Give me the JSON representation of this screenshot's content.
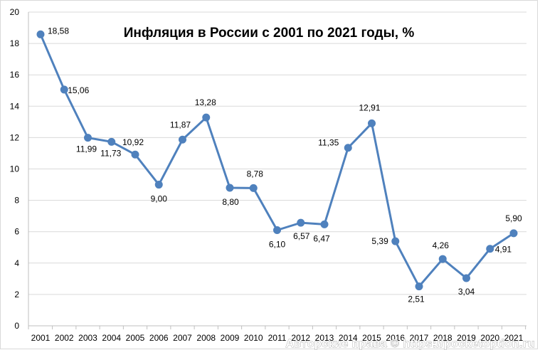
{
  "chart_data": {
    "type": "line",
    "title": "Инфляция в России с 2001 по 2021 годы, %",
    "categories": [
      "2001",
      "2002",
      "2003",
      "2004",
      "2005",
      "2006",
      "2007",
      "2008",
      "2009",
      "2010",
      "2011",
      "2012",
      "2013",
      "2014",
      "2015",
      "2016",
      "2017",
      "2018",
      "2019",
      "2020",
      "2021"
    ],
    "series": [
      {
        "values": [
          18.58,
          15.06,
          11.99,
          11.73,
          10.92,
          9.0,
          11.87,
          13.28,
          8.8,
          8.78,
          6.1,
          6.57,
          6.47,
          11.35,
          12.91,
          5.39,
          2.51,
          4.26,
          3.04,
          4.91,
          5.9
        ]
      }
    ],
    "data_labels": [
      "18,58",
      "15,06",
      "11,99",
      "11,73",
      "10,92",
      "9,00",
      "11,87",
      "13,28",
      "8,80",
      "8,78",
      "6,10",
      "6,57",
      "6,47",
      "11,35",
      "12,91",
      "5,39",
      "2,51",
      "4,26",
      "3,04",
      "4,91",
      "5,90"
    ],
    "y_ticks": [
      "0",
      "2",
      "4",
      "6",
      "8",
      "10",
      "12",
      "14",
      "16",
      "18",
      "20"
    ],
    "ylim": [
      0,
      20
    ],
    "grid": true,
    "legend": false,
    "line_color": "#4f81bd"
  },
  "watermark": "Авторские права © https://pocketoption.ru"
}
